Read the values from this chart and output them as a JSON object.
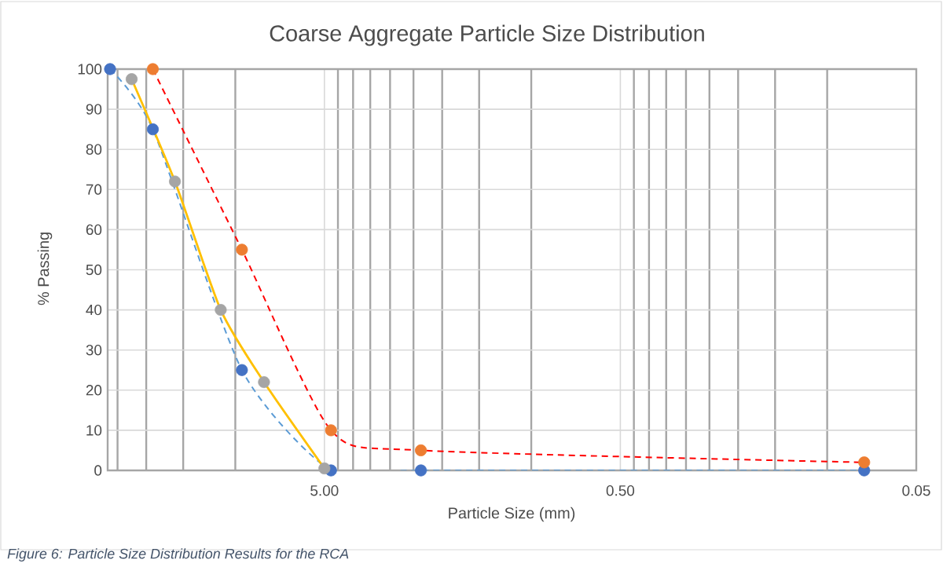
{
  "chart_data": {
    "type": "line",
    "title": "Coarse Aggregate Particle Size Distribution",
    "xlabel": "Particle Size (mm)",
    "ylabel": "% Passing",
    "log": "x",
    "xlim": [
      27,
      0.05
    ],
    "xticks": [
      {
        "value": 5,
        "label": "5.00"
      },
      {
        "value": 0.5,
        "label": "0.50"
      },
      {
        "value": 0.05,
        "label": "0.05"
      }
    ],
    "ylim": [
      0,
      100
    ],
    "yticks": [
      0,
      10,
      20,
      30,
      40,
      50,
      60,
      70,
      80,
      90,
      100
    ],
    "grid": true,
    "marker": "circle",
    "series": [
      {
        "x": [
          26.5,
          19,
          9.5,
          4.75,
          2.36,
          0.075
        ],
        "values": [
          100,
          85,
          25,
          0,
          0,
          0
        ],
        "color": "#5b9bd5",
        "colors": [
          "#4472c4",
          "#4472c4",
          "#4472c4",
          "#4472c4",
          "#4472c4",
          "#4472c4"
        ],
        "line_style": "dashed"
      },
      {
        "x": [
          19,
          9.5,
          4.75,
          2.36,
          0.075
        ],
        "values": [
          100,
          55,
          10,
          5,
          2
        ],
        "color": "#ff0000",
        "colors": [
          "#ed7d31",
          "#ed7d31",
          "#ed7d31",
          "#ed7d31",
          "#ed7d31"
        ],
        "line_style": "dashed"
      },
      {
        "x": [
          22.4,
          16,
          11.2,
          8,
          5
        ],
        "values": [
          97.5,
          72,
          40,
          22,
          0.5
        ],
        "color": "#ffc000",
        "colors": [
          "#a5a5a5",
          "#a5a5a5",
          "#a5a5a5",
          "#a5a5a5",
          "#a5a5a5"
        ],
        "line_style": "solid"
      }
    ],
    "annotations": [
      "*Figure 6: Particle Size Distribution Results for the RCA*"
    ]
  }
}
